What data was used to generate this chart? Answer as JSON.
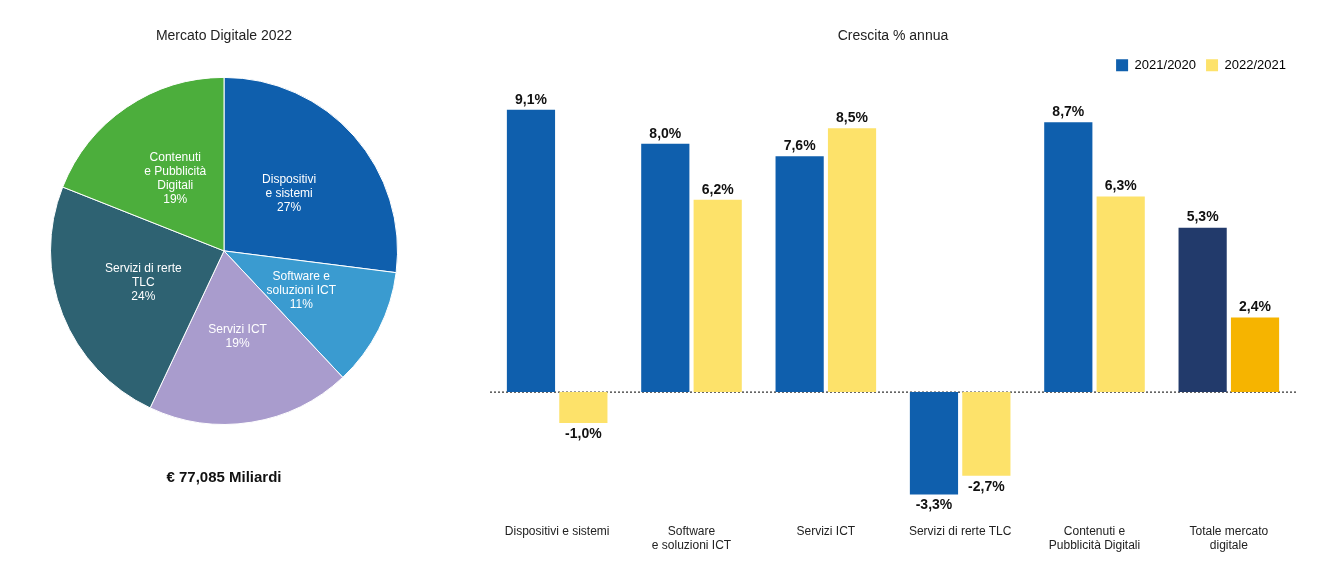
{
  "chart_data": [
    {
      "type": "pie",
      "title": "Mercato Digitale 2022",
      "categories": [
        "Dispositivi\ne sistemi",
        "Software e\nsoluzioni ICT",
        "Servizi ICT",
        "Servizi di rerte\nTLC",
        "Contenuti\ne Pubblicità\nDigitali"
      ],
      "values": [
        27,
        11,
        19,
        24,
        19
      ],
      "value_labels": [
        "27%",
        "11%",
        "19%",
        "24%",
        "19%"
      ],
      "colors": [
        "#0f5fad",
        "#3a9bd0",
        "#a99ccd",
        "#2e6272",
        "#4cae3c"
      ],
      "legend": false,
      "annotations": [
        "€ 77,085 Miliardi"
      ]
    },
    {
      "type": "bar",
      "title": "Crescita % annua",
      "categories": [
        "Dispositivi e sistemi",
        "Software\ne soluzioni ICT",
        "Servizi ICT",
        "Servizi di rerte TLC",
        "Contenuti e\nPubblicità Digitali",
        "Totale mercato\ndigitale"
      ],
      "series": [
        {
          "name": "2021/2020",
          "color": "#0f5fad",
          "colors": [
            "#0f5fad",
            "#0f5fad",
            "#0f5fad",
            "#0f5fad",
            "#0f5fad",
            "#223a6b"
          ],
          "values": [
            9.1,
            8.0,
            7.6,
            -3.3,
            8.7,
            5.3
          ],
          "value_labels": [
            "9,1%",
            "8,0%",
            "7,6%",
            "-3,3%",
            "8,7%",
            "5,3%"
          ]
        },
        {
          "name": "2022/2021",
          "color": "#fde26a",
          "colors": [
            "#fde26a",
            "#fde26a",
            "#fde26a",
            "#fde26a",
            "#fde26a",
            "#f6b400"
          ],
          "values": [
            -1.0,
            6.2,
            8.5,
            -2.7,
            6.3,
            2.4
          ],
          "value_labels": [
            "-1,0%",
            "6,2%",
            "8,5%",
            "-2,7%",
            "6,3%",
            "2,4%"
          ]
        }
      ],
      "ref_lines": [
        {
          "axis": "y",
          "value": 0,
          "color": "#333333",
          "line_style": "dotted"
        }
      ],
      "legend": "top right",
      "grid": false
    }
  ]
}
